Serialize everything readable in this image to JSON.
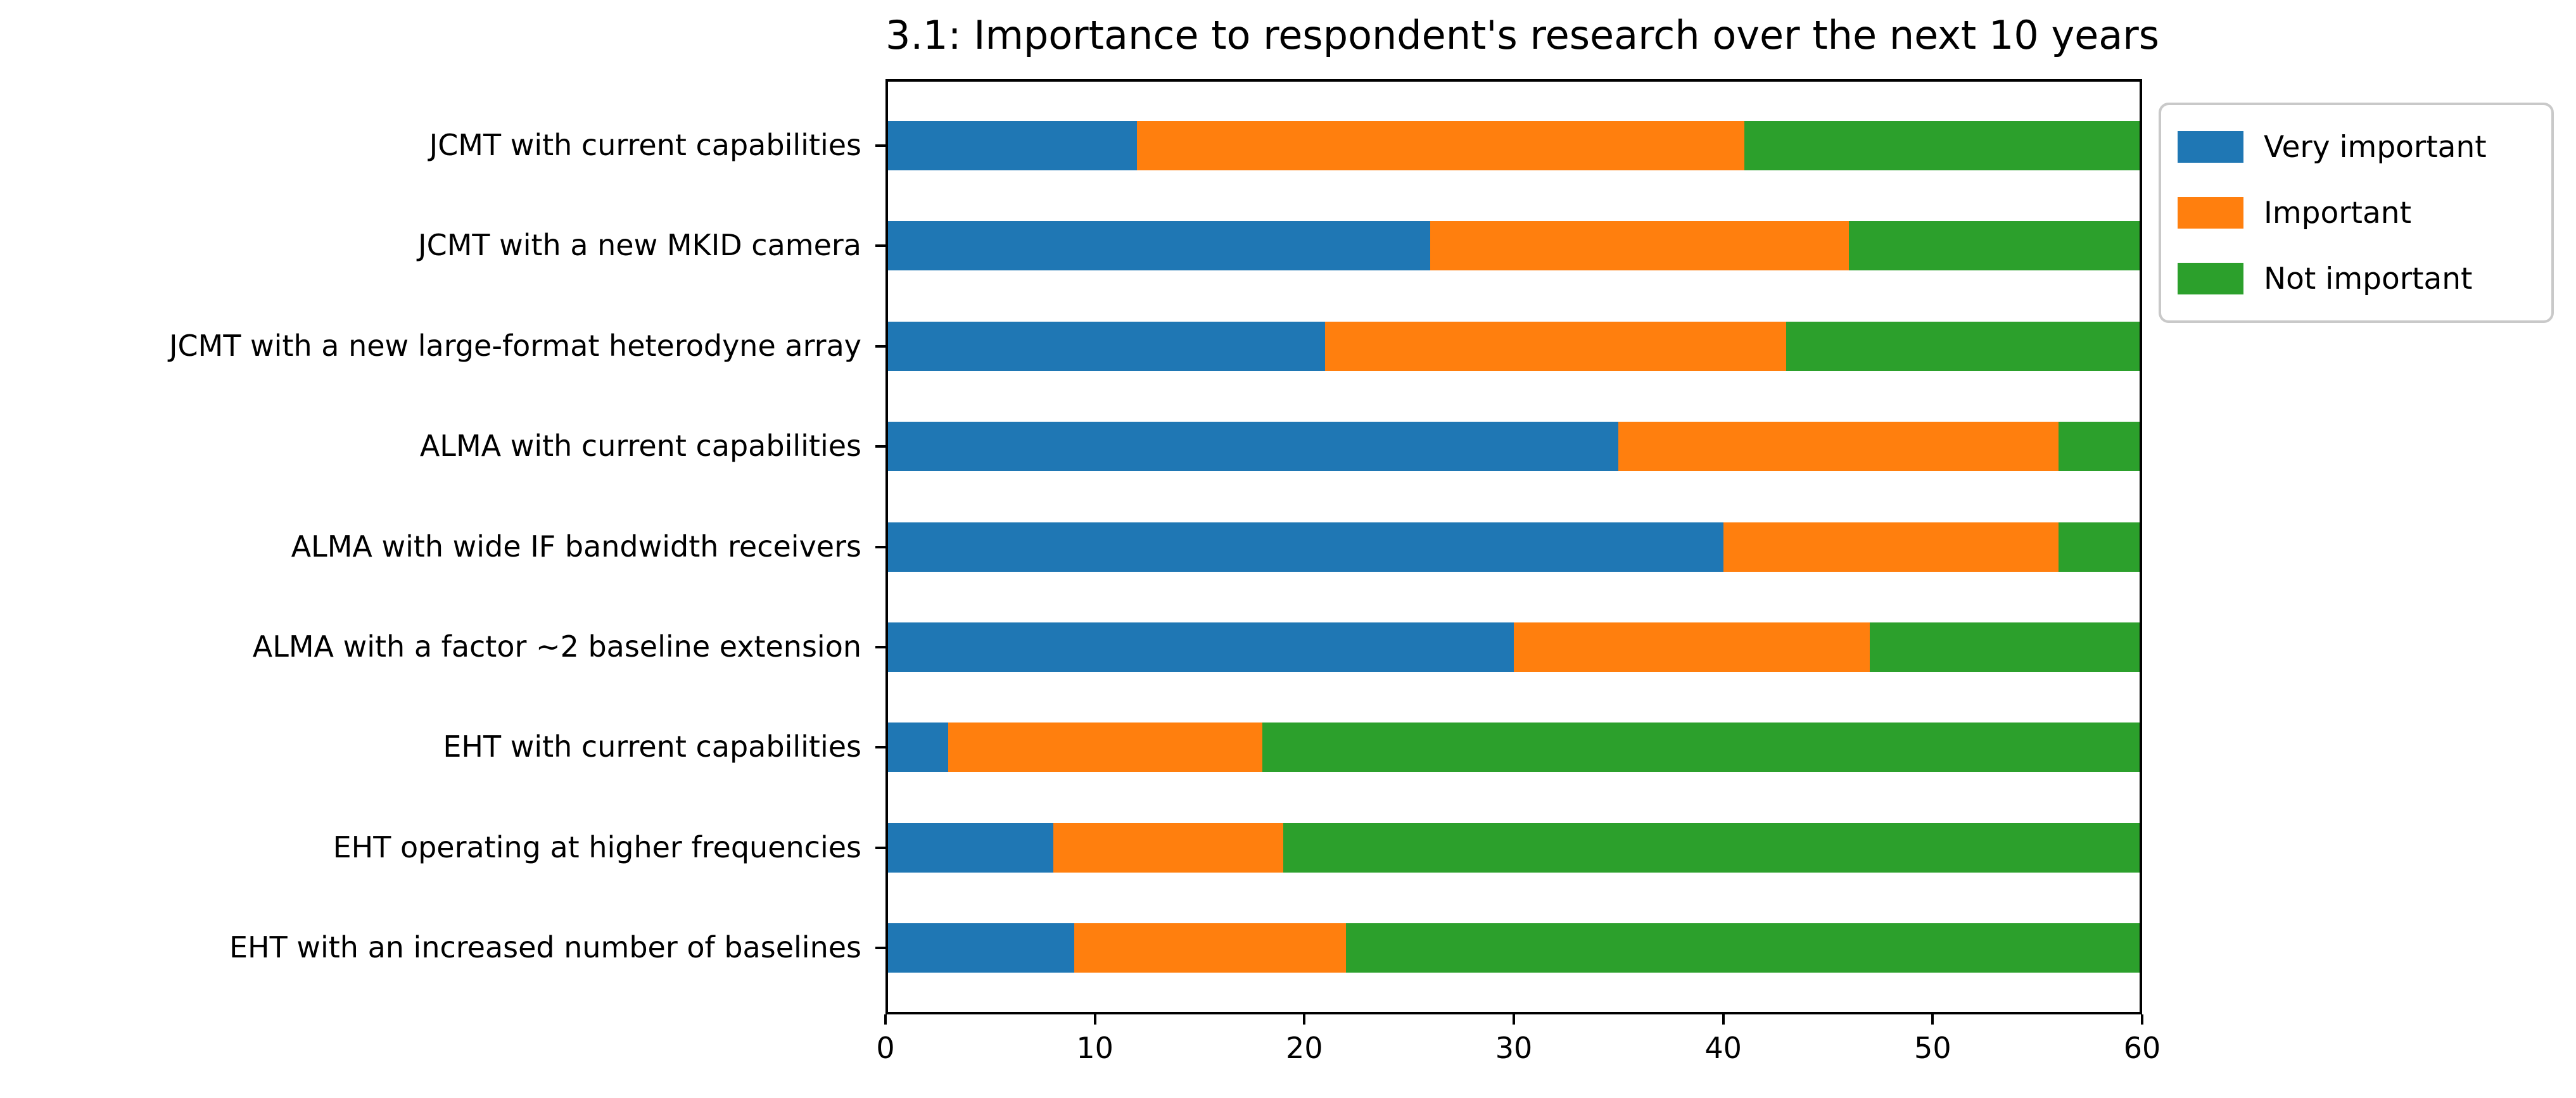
{
  "chart_data": {
    "type": "bar",
    "orientation": "horizontal",
    "stacked": true,
    "title": "3.1: Importance to respondent's research over the next 10 years",
    "xlabel": "",
    "ylabel": "",
    "xlim": [
      0,
      60
    ],
    "x_ticks": [
      0,
      10,
      20,
      30,
      40,
      50,
      60
    ],
    "grid": false,
    "legend_position": "upper-right-outside",
    "categories": [
      "JCMT with current capabilities",
      "JCMT with a new MKID camera",
      "JCMT with a new large-format heterodyne array",
      "ALMA with current capabilities",
      "ALMA with wide IF bandwidth receivers",
      "ALMA with a factor ~2 baseline extension",
      "EHT with current capabilities",
      "EHT operating at higher frequencies",
      "EHT with an increased number of baselines"
    ],
    "series": [
      {
        "name": "Very important",
        "color": "#1f77b4",
        "values": [
          12,
          26,
          21,
          35,
          40,
          30,
          3,
          8,
          9
        ]
      },
      {
        "name": "Important",
        "color": "#ff7f0e",
        "values": [
          29,
          20,
          22,
          21,
          16,
          17,
          15,
          11,
          13
        ]
      },
      {
        "name": "Not important",
        "color": "#2ca02c",
        "values": [
          19,
          14,
          17,
          4,
          4,
          13,
          42,
          41,
          38
        ]
      }
    ]
  }
}
